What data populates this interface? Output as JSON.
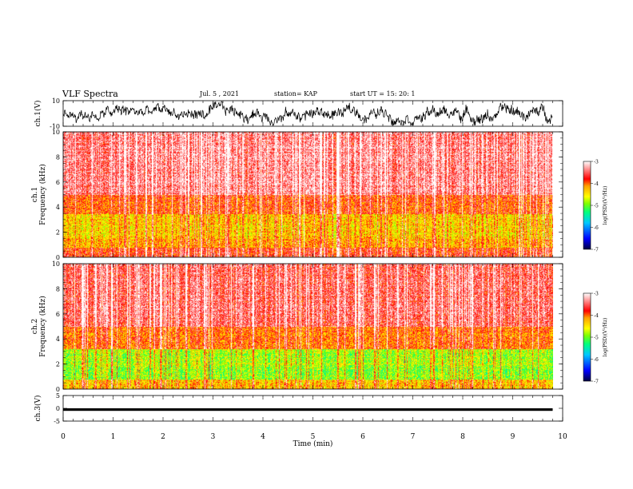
{
  "header": {
    "title": "VLF Spectra",
    "date": "Jul. 5 , 2021",
    "station": "station= KAP",
    "start": "start UT = 15: 20: 1"
  },
  "colors": {
    "spectrogram_palette": [
      "#000080",
      "#0000ff",
      "#00c8ff",
      "#00ff80",
      "#80ff00",
      "#ffff00",
      "#ffa000",
      "#ff0000",
      "#ff8080",
      "#ffffff"
    ],
    "waveform": "#000000"
  },
  "chart_data": [
    {
      "type": "line",
      "name": "ch1-waveform",
      "ylabel": "ch.1(V)",
      "ylim": [
        -10,
        10
      ],
      "yticks": [
        "10",
        "-10"
      ],
      "xlim": [
        0,
        10
      ],
      "description_values": {
        "x_end_min": 9.8,
        "typical_range": [
          -8,
          8
        ]
      }
    },
    {
      "type": "heatmap",
      "name": "ch1-spectrogram",
      "ylabel": "ch.1\nFrequency (kHz)",
      "ylim": [
        0,
        10
      ],
      "yticks": [
        "0",
        "2",
        "4",
        "6",
        "8",
        "10"
      ],
      "xlim": [
        0,
        10
      ],
      "x_end_min": 9.8,
      "colorbar": {
        "label": "log(PSD)(V²/Hz)",
        "ticks": [
          "-3",
          "-4",
          "-5",
          "-6",
          "-7"
        ],
        "range": [
          -7,
          -3
        ]
      },
      "band_log_psd": [
        {
          "f": [
            0,
            0.8
          ],
          "v": -3.8
        },
        {
          "f": [
            0.8,
            1.5
          ],
          "v": -4.2
        },
        {
          "f": [
            1.5,
            3.5
          ],
          "v": -4.4
        },
        {
          "f": [
            3.5,
            5
          ],
          "v": -3.9
        },
        {
          "f": [
            5,
            10
          ],
          "v": -3.4
        }
      ]
    },
    {
      "type": "heatmap",
      "name": "ch2-spectrogram",
      "ylabel": "ch.2\nFrequency (kHz)",
      "ylim": [
        0,
        10
      ],
      "yticks": [
        "0",
        "2",
        "4",
        "6",
        "8",
        "10"
      ],
      "xlim": [
        0,
        10
      ],
      "x_end_min": 9.8,
      "colorbar": {
        "label": "log(PSD)(V²/Hz)",
        "ticks": [
          "-3",
          "-4",
          "-5",
          "-6",
          "-7"
        ],
        "range": [
          -7,
          -3
        ]
      },
      "band_log_psd": [
        {
          "f": [
            0,
            0.8
          ],
          "v": -4.3
        },
        {
          "f": [
            0.8,
            1.8
          ],
          "v": -4.9
        },
        {
          "f": [
            1.8,
            3.2
          ],
          "v": -4.8
        },
        {
          "f": [
            3.2,
            5
          ],
          "v": -4.0
        },
        {
          "f": [
            5,
            10
          ],
          "v": -3.5
        }
      ]
    },
    {
      "type": "line",
      "name": "ch3-waveform",
      "ylabel": "ch.3(V)",
      "ylim": [
        -5,
        5
      ],
      "yticks": [
        "5",
        "0",
        "-5"
      ],
      "xlim": [
        0,
        10
      ],
      "xlabel": "Time (min)",
      "xticks": [
        "0",
        "1",
        "2",
        "3",
        "4",
        "5",
        "6",
        "7",
        "8",
        "9",
        "10"
      ],
      "description_values": {
        "x_end_min": 9.8,
        "typical_range": [
          -1,
          0
        ]
      }
    }
  ]
}
